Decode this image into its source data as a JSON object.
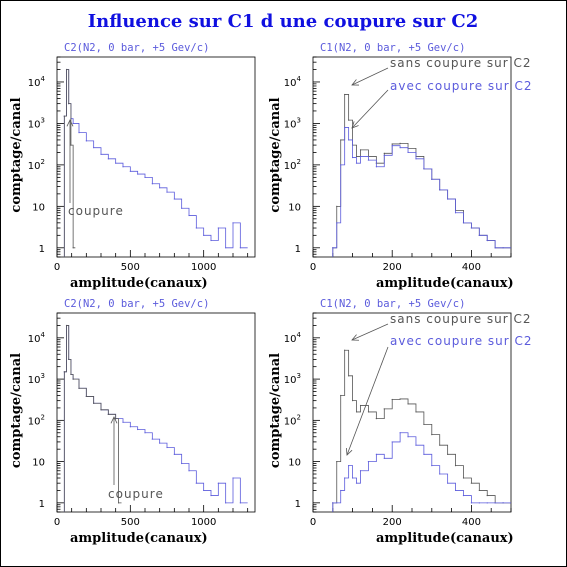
{
  "figure": {
    "title": "Influence sur C1 d une coupure sur C2",
    "colors": {
      "black": "#000000",
      "gray": "#555555",
      "blue": "#5b5bdc",
      "title": "#1010e0"
    }
  },
  "chart_data": [
    {
      "type": "line",
      "title": "C2(N2, 0 bar, +5 Gev/c)",
      "xlabel": "amplitude(canaux)",
      "ylabel": "comptage/canal",
      "xlim": [
        0,
        1350
      ],
      "ylim": [
        0.6,
        40000
      ],
      "yscale": "log",
      "xticks": [
        0,
        500,
        1000
      ],
      "yticks": [
        1,
        10,
        100,
        1000,
        10000
      ],
      "series": [
        {
          "color": "blue",
          "x": [
            50,
            65,
            80,
            95,
            110,
            150,
            200,
            250,
            300,
            350,
            400,
            450,
            500,
            550,
            600,
            650,
            700,
            750,
            800,
            850,
            900,
            950,
            1000,
            1050,
            1100,
            1150,
            1200,
            1250
          ],
          "y": [
            1500,
            20000,
            3000,
            1300,
            1000,
            600,
            380,
            260,
            180,
            140,
            110,
            90,
            70,
            60,
            50,
            35,
            28,
            22,
            15,
            9,
            6,
            3,
            2,
            1.5,
            3,
            1,
            4,
            1
          ]
        },
        {
          "color": "gray",
          "x": [
            50,
            65,
            80,
            95,
            110
          ],
          "y": [
            1500,
            20000,
            3000,
            300,
            1
          ]
        }
      ],
      "annotations": [
        {
          "text": "coupure",
          "x": 100
        }
      ]
    },
    {
      "type": "line",
      "title": "C1(N2, 0 bar, +5 Gev/c)",
      "xlabel": "amplitude(canaux)",
      "ylabel": "comptage/canal",
      "xlim": [
        0,
        500
      ],
      "ylim": [
        0.6,
        40000
      ],
      "yscale": "log",
      "xticks": [
        0,
        200,
        400
      ],
      "yticks": [
        1,
        10,
        100,
        1000,
        10000
      ],
      "series": [
        {
          "name": "sans coupure sur C2",
          "color": "gray",
          "x": [
            50,
            60,
            70,
            80,
            90,
            100,
            110,
            120,
            140,
            160,
            180,
            200,
            220,
            240,
            260,
            280,
            300,
            320,
            340,
            360,
            380,
            400,
            420,
            440,
            460,
            480
          ],
          "y": [
            1,
            10,
            400,
            5000,
            1200,
            300,
            160,
            230,
            160,
            110,
            190,
            320,
            330,
            250,
            160,
            80,
            45,
            25,
            15,
            8,
            4,
            3,
            2,
            1.5,
            1,
            1
          ]
        },
        {
          "name": "avec coupure sur C2",
          "color": "blue",
          "x": [
            50,
            60,
            70,
            80,
            90,
            100,
            110,
            120,
            140,
            160,
            180,
            200,
            220,
            240,
            260,
            280,
            300,
            320,
            340,
            360,
            380,
            400,
            420,
            440,
            460,
            480
          ],
          "y": [
            1,
            4,
            100,
            800,
            400,
            150,
            110,
            160,
            130,
            90,
            170,
            290,
            260,
            200,
            140,
            80,
            45,
            25,
            15,
            7,
            4,
            3,
            2,
            1.5,
            1,
            1
          ]
        }
      ]
    },
    {
      "type": "line",
      "title": "C2(N2, 0 bar, +5 Gev/c)",
      "xlabel": "amplitude(canaux)",
      "ylabel": "comptage/canal",
      "xlim": [
        0,
        1350
      ],
      "ylim": [
        0.6,
        40000
      ],
      "yscale": "log",
      "xticks": [
        0,
        500,
        1000
      ],
      "yticks": [
        1,
        10,
        100,
        1000,
        10000
      ],
      "series": [
        {
          "color": "blue",
          "x": [
            50,
            65,
            80,
            95,
            110,
            150,
            200,
            250,
            300,
            350,
            400,
            450,
            500,
            550,
            600,
            650,
            700,
            750,
            800,
            850,
            900,
            950,
            1000,
            1050,
            1100,
            1150,
            1200,
            1250
          ],
          "y": [
            1500,
            20000,
            3000,
            1300,
            1000,
            600,
            380,
            260,
            180,
            140,
            110,
            90,
            70,
            60,
            50,
            35,
            28,
            22,
            15,
            9,
            6,
            3,
            2,
            1.5,
            3,
            1,
            4,
            1
          ]
        },
        {
          "color": "gray",
          "x": [
            50,
            65,
            80,
            95,
            110,
            150,
            200,
            250,
            300,
            350,
            400,
            420
          ],
          "y": [
            1500,
            20000,
            3000,
            1300,
            1000,
            600,
            380,
            260,
            180,
            140,
            110,
            1
          ]
        }
      ],
      "annotations": [
        {
          "text": "coupure",
          "x": 400
        }
      ]
    },
    {
      "type": "line",
      "title": "C1(N2, 0 bar, +5 Gev/c)",
      "xlabel": "amplitude(canaux)",
      "ylabel": "comptage/canal",
      "xlim": [
        0,
        500
      ],
      "ylim": [
        0.6,
        40000
      ],
      "yscale": "log",
      "xticks": [
        0,
        200,
        400
      ],
      "yticks": [
        1,
        10,
        100,
        1000,
        10000
      ],
      "series": [
        {
          "name": "sans coupure sur C2",
          "color": "gray",
          "x": [
            50,
            60,
            70,
            80,
            90,
            100,
            110,
            120,
            140,
            160,
            180,
            200,
            220,
            240,
            260,
            280,
            300,
            320,
            340,
            360,
            380,
            400,
            420,
            440,
            460,
            480
          ],
          "y": [
            1,
            10,
            400,
            5000,
            1200,
            300,
            160,
            230,
            160,
            110,
            190,
            320,
            330,
            250,
            160,
            80,
            45,
            25,
            15,
            8,
            4,
            3,
            2,
            1.5,
            1,
            1
          ]
        },
        {
          "name": "avec coupure sur C2",
          "color": "blue",
          "x": [
            50,
            60,
            70,
            80,
            90,
            100,
            110,
            120,
            140,
            160,
            180,
            200,
            220,
            240,
            260,
            280,
            300,
            320,
            340,
            360,
            380,
            400,
            420,
            440,
            460,
            480
          ],
          "y": [
            1,
            1,
            2,
            4,
            8,
            4,
            3,
            6,
            10,
            15,
            12,
            30,
            50,
            40,
            25,
            15,
            8,
            5,
            3,
            2,
            1.5,
            1,
            1,
            1,
            1,
            1
          ]
        }
      ]
    }
  ]
}
